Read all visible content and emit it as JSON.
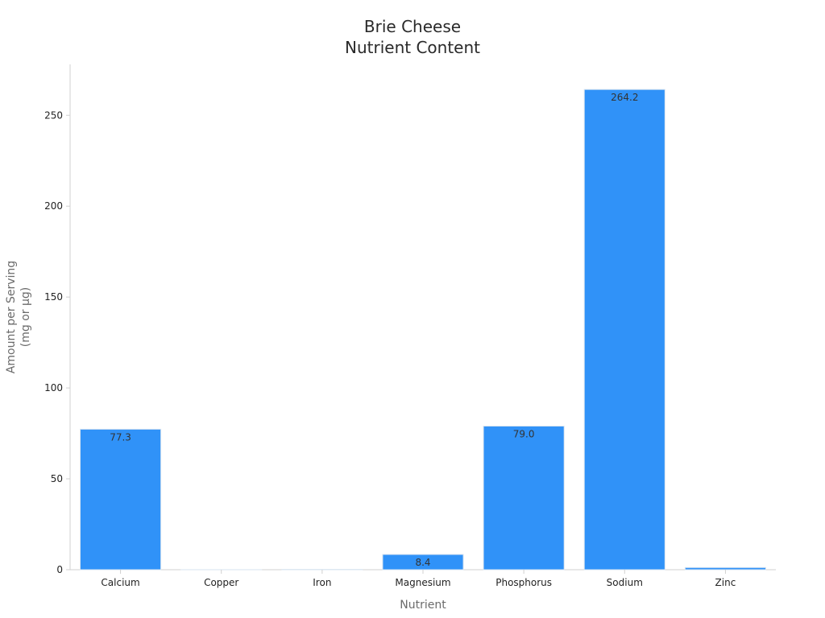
{
  "chart_data": {
    "type": "bar",
    "title": "Brie Cheese",
    "subtitle": "Nutrient Content",
    "xlabel": "Nutrient",
    "ylabel": "Amount per Serving",
    "ylabel_unit": "(mg or µg)",
    "categories": [
      "Calcium",
      "Copper",
      "Iron",
      "Magnesium",
      "Phosphorus",
      "Sodium",
      "Zinc"
    ],
    "values": [
      77.3,
      0.02,
      0.16,
      8.4,
      79.0,
      264.2,
      1.2
    ],
    "data_labels": [
      "77.3",
      "",
      "",
      "8.4",
      "79.0",
      "264.2",
      ""
    ],
    "ylim": [
      0,
      278
    ],
    "yticks": [
      0,
      50,
      100,
      150,
      200,
      250
    ],
    "grid": false,
    "legend": "none",
    "colors": {
      "bar": "#3092f8",
      "bar_edge": "#d9e4f0",
      "axis": "#d0d0d0",
      "tick_text": "#222222",
      "label_text": "#6b6b6b",
      "title_text": "#2a2a2a",
      "value_text": "#333333"
    }
  }
}
